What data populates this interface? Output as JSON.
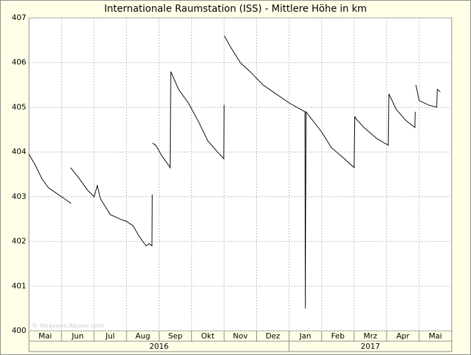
{
  "chart_data": {
    "type": "line",
    "title": "Internationale Raumstation (ISS) - Mittlere Höhe in km",
    "watermark": "© Heavens-Above.com",
    "xlim": [
      0,
      13
    ],
    "xticks": [
      {
        "value": 0.5,
        "label": "Mai"
      },
      {
        "value": 1.5,
        "label": "Jun"
      },
      {
        "value": 2.5,
        "label": "Jul"
      },
      {
        "value": 3.5,
        "label": "Aug"
      },
      {
        "value": 4.5,
        "label": "Sep"
      },
      {
        "value": 5.5,
        "label": "Okt"
      },
      {
        "value": 6.5,
        "label": "Nov"
      },
      {
        "value": 7.5,
        "label": "Dez"
      },
      {
        "value": 8.5,
        "label": "Jan"
      },
      {
        "value": 9.5,
        "label": "Feb"
      },
      {
        "value": 10.5,
        "label": "Mrz"
      },
      {
        "value": 11.5,
        "label": "Apr"
      },
      {
        "value": 12.5,
        "label": "Mai"
      }
    ],
    "year_labels": [
      {
        "value": 4,
        "label": "2016"
      },
      {
        "value": 10.5,
        "label": "2017"
      }
    ],
    "ylim": [
      400,
      407
    ],
    "yticks": [
      400,
      401,
      402,
      403,
      404,
      405,
      406,
      407
    ],
    "grid": true,
    "series": [
      {
        "color": "#000000",
        "x": [
          0,
          0.2,
          0.4,
          0.6,
          0.8,
          1.0,
          1.3,
          null,
          1.28,
          1.5,
          1.8,
          2.0,
          2.1,
          2.2,
          2.5,
          2.8,
          3.0,
          3.2,
          3.4,
          3.6,
          3.7,
          3.78,
          3.79,
          null,
          3.8,
          3.9,
          4.1,
          4.3,
          4.34,
          4.36,
          4.6,
          4.9,
          5.2,
          5.5,
          5.8,
          5.99,
          6.0,
          null,
          6.01,
          6.2,
          6.5,
          6.8,
          7.2,
          7.5,
          8.0,
          8.49,
          8.5,
          8.52,
          9.0,
          9.3,
          9.7,
          10.0,
          10.02,
          10.05,
          10.3,
          10.7,
          11.05,
          11.07,
          11.3,
          11.6,
          11.87,
          11.88,
          null,
          11.9,
          12.0,
          12.3,
          12.54,
          12.56,
          12.65
        ],
        "values": [
          403.95,
          403.7,
          403.4,
          403.2,
          403.1,
          403.0,
          402.85,
          null,
          403.65,
          403.45,
          403.15,
          403.0,
          403.25,
          402.95,
          402.6,
          402.5,
          402.45,
          402.35,
          402.1,
          401.9,
          401.95,
          401.9,
          403.05,
          null,
          404.2,
          404.15,
          403.9,
          403.7,
          403.65,
          405.8,
          405.4,
          405.1,
          404.7,
          404.25,
          404.0,
          403.85,
          405.05,
          null,
          406.6,
          406.35,
          406.0,
          405.8,
          405.5,
          405.35,
          405.1,
          404.9,
          400.5,
          404.9,
          404.45,
          404.1,
          403.85,
          403.65,
          404.8,
          404.75,
          404.55,
          404.3,
          404.15,
          405.3,
          404.95,
          404.7,
          404.55,
          404.9,
          null,
          405.5,
          405.15,
          405.05,
          405.0,
          405.4,
          405.35
        ]
      }
    ]
  }
}
